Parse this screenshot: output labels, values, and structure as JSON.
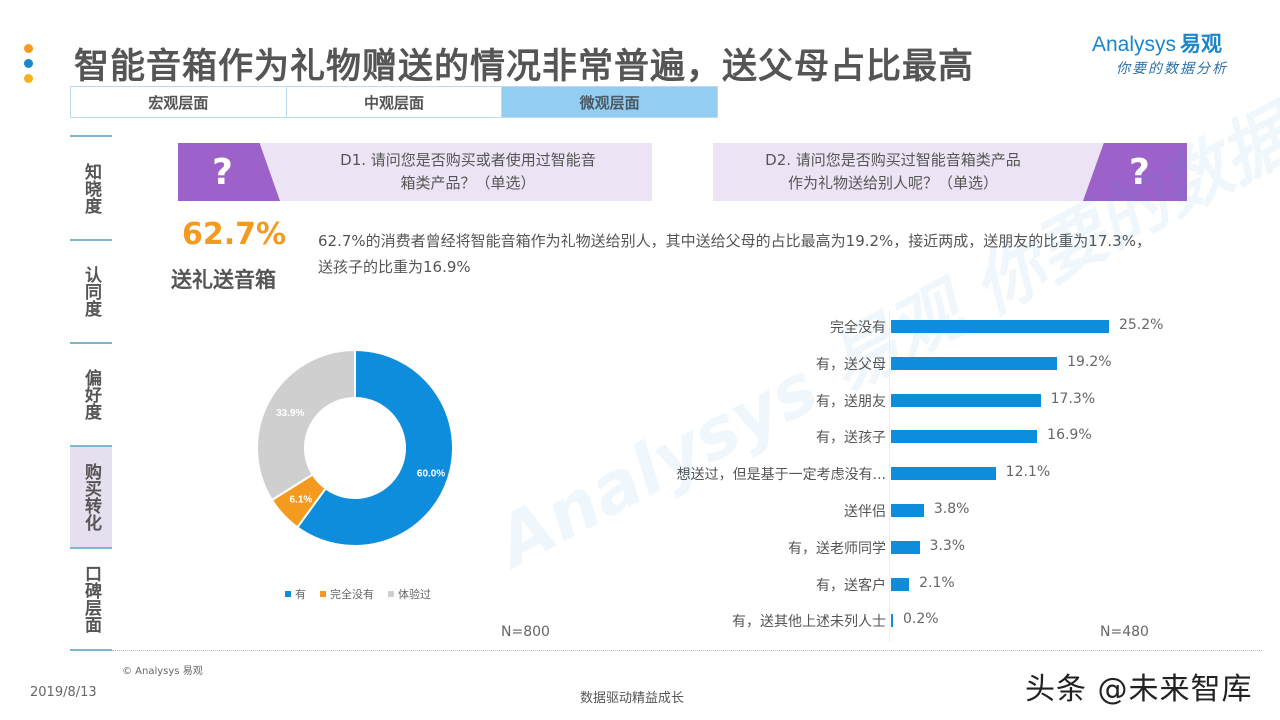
{
  "header": {
    "title": "智能音箱作为礼物赠送的情况非常普遍，送父母占比最高",
    "dot_colors": [
      "#f39a1f",
      "#1b86c9",
      "#f6b21c"
    ]
  },
  "logo": {
    "brand_en": "Analysys",
    "brand_cn": "易观",
    "slogan": "你要的数据分析"
  },
  "tabs": [
    {
      "label": "宏观层面",
      "active": false
    },
    {
      "label": "中观层面",
      "active": false
    },
    {
      "label": "微观层面",
      "active": true
    }
  ],
  "sidebar": {
    "items": [
      {
        "label": "知晓度",
        "active": false
      },
      {
        "label": "认同度",
        "active": false
      },
      {
        "label": "偏好度",
        "active": false
      },
      {
        "label": "购买转化",
        "active": true
      },
      {
        "label": "口碑层面",
        "active": false
      }
    ]
  },
  "questions": {
    "d1": {
      "icon": "?",
      "text_line1": "D1. 请问您是否购买或者使用过智能音",
      "text_line2": "箱类产品？（单选）"
    },
    "d2": {
      "icon": "?",
      "text_line1": "D2. 请问您是否购买过智能音箱类产品",
      "text_line2": "作为礼物送给别人呢？（单选）"
    }
  },
  "highlight": {
    "value": "62.7%",
    "label": "送礼送音箱"
  },
  "summary": {
    "text": "62.7%的消费者曾经将智能音箱作为礼物送给别人，其中送给父母的占比最高为19.2%，接近两成，送朋友的比重为17.3%，送孩子的比重为16.9%"
  },
  "watermark": {
    "text": "Analysys 易观 你要的数据分析"
  },
  "chart_data": [
    {
      "type": "pie",
      "subtype": "donut",
      "title": "D1. 请问您是否购买或者使用过智能音箱类产品？（单选）",
      "categories": [
        "有",
        "完全没有",
        "体验过"
      ],
      "values": [
        60.0,
        6.1,
        33.9
      ],
      "labels": [
        "60.0%",
        "6.1%",
        "33.9%"
      ],
      "colors": [
        "#0d8ddb",
        "#f39a1f",
        "#cfcfcf"
      ],
      "legend_position": "bottom",
      "sample_size": "N=800"
    },
    {
      "type": "bar",
      "orientation": "horizontal",
      "title": "D2. 请问您是否购买过智能音箱类产品作为礼物送给别人呢？（单选）",
      "categories": [
        "完全没有",
        "有，送父母",
        "有，送朋友",
        "有，送孩子",
        "想送过，但是基于一定考虑没有...",
        "送伴侣",
        "有，送老师同学",
        "有，送客户",
        "有，送其他上述未列人士"
      ],
      "values": [
        25.2,
        19.2,
        17.3,
        16.9,
        12.1,
        3.8,
        3.3,
        2.1,
        0.2
      ],
      "value_labels": [
        "25.2%",
        "19.2%",
        "17.3%",
        "16.9%",
        "12.1%",
        "3.8%",
        "3.3%",
        "2.1%",
        "0.2%"
      ],
      "color": "#0d8ddb",
      "xlabel": "",
      "ylabel": "",
      "grid": false,
      "sample_size": "N=480"
    }
  ],
  "footer": {
    "copyright": "© Analysys 易观",
    "date": "2019/8/13",
    "tagline": "数据驱动精益成长",
    "source_watermark": "头条 @未来智库"
  }
}
